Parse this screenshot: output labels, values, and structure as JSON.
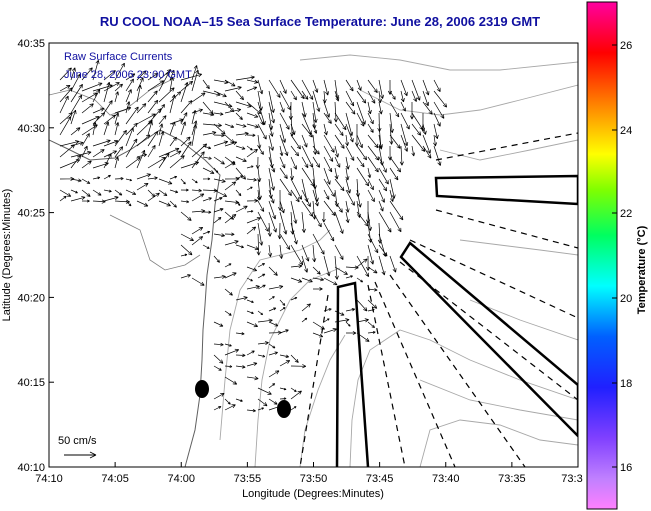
{
  "title": "RU COOL  NOAA–15  Sea Surface Temperature:  June 28, 2006 2319 GMT",
  "legend_overlay": {
    "line1": "Raw Surface Currents",
    "line2": "June 28, 2006 23:00 GMT"
  },
  "scale_label": "50 cm/s",
  "axes": {
    "xlabel": "Longitude (Degrees:Minutes)",
    "ylabel": "Latitude (Degrees:Minutes)",
    "xticks": [
      "74:10",
      "74:05",
      "74:00",
      "73:55",
      "73:50",
      "73:45",
      "73:40",
      "73:35",
      "73:3"
    ],
    "yticks": [
      "40:35",
      "40:30",
      "40:25",
      "40:20",
      "40:15",
      "40:10"
    ]
  },
  "colorbar": {
    "label": "Temperature (°C)",
    "ticks": [
      "26",
      "24",
      "22",
      "20",
      "18",
      "16"
    ],
    "colors": [
      "#ff00a0",
      "#ff0000",
      "#ff8000",
      "#ffff00",
      "#80ff00",
      "#00ff60",
      "#00ffff",
      "#0060ff",
      "#2020ff",
      "#8040ff",
      "#c080ff"
    ]
  },
  "colors": {
    "title": "#1010a0",
    "overlay_text": "#1010a0",
    "contour": "#a0a0a0",
    "vectors": "#000000"
  }
}
